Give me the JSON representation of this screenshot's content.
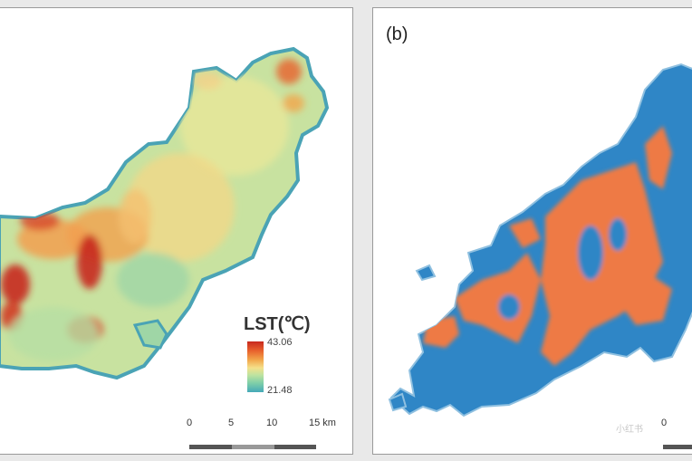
{
  "panel_a": {
    "legend": {
      "title": "LST(℃)",
      "max": "43.06",
      "min": "21.48",
      "colors": [
        "#c8281e",
        "#e8602c",
        "#f2a54a",
        "#f4e08a",
        "#bfe3a0",
        "#7fcfa8",
        "#45a9b8"
      ]
    },
    "scale_bar": {
      "ticks": [
        "0",
        "5",
        "10",
        "15 km"
      ]
    }
  },
  "panel_b": {
    "label": "(b)",
    "scale_bar": {
      "ticks": [
        "0"
      ]
    },
    "watermark": "小红书",
    "colors": {
      "water_class": "#2f86c6",
      "built_class": "#ee7a45"
    }
  }
}
